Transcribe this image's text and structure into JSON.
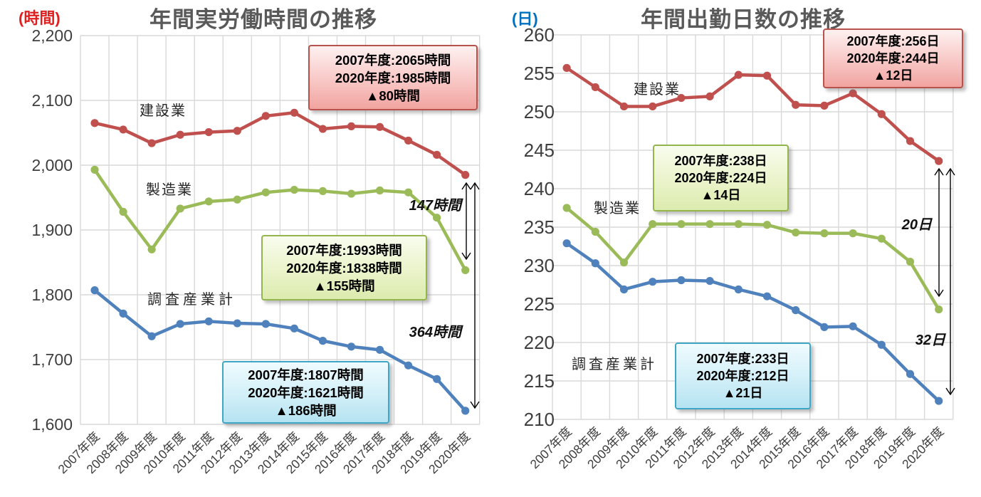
{
  "page": {
    "background": "#ffffff"
  },
  "colors": {
    "grid": "#d9d9d9",
    "tick_text": "#3f3f3f",
    "title": "#595959",
    "series_label_text": "#262626",
    "arrow": "#000000",
    "construction": "#C0504D",
    "manufacturing": "#9BBB59",
    "all_industries": "#4F81BD"
  },
  "chart_data": [
    {
      "type": "line",
      "title": "年間実労働時間の推移",
      "unit_label": "(時間)",
      "unit_color": "#e02020",
      "categories": [
        "2007年度",
        "2008年度",
        "2009年度",
        "2010年度",
        "2011年度",
        "2012年度",
        "2013年度",
        "2014年度",
        "2015年度",
        "2016年度",
        "2017年度",
        "2018年度",
        "2019年度",
        "2020年度"
      ],
      "ylim": [
        1600,
        2200
      ],
      "ytick_step": 100,
      "yticks": [
        "2,200",
        "2,100",
        "2,000",
        "1,900",
        "1,800",
        "1,700",
        "1,600"
      ],
      "grid": "on",
      "legend_position": "inline-labels",
      "series": [
        {
          "name": "建設業",
          "color": "#C0504D",
          "values": [
            2065,
            2055,
            2034,
            2047,
            2051,
            2053,
            2076,
            2081,
            2056,
            2060,
            2059,
            2038,
            2016,
            1985
          ]
        },
        {
          "name": "製造業",
          "color": "#9BBB59",
          "values": [
            1993,
            1928,
            1870,
            1933,
            1944,
            1947,
            1958,
            1962,
            1960,
            1956,
            1961,
            1958,
            1919,
            1838
          ]
        },
        {
          "name": "調査産業計",
          "color": "#4F81BD",
          "values": [
            1807,
            1771,
            1736,
            1755,
            1759,
            1756,
            1755,
            1748,
            1729,
            1720,
            1715,
            1691,
            1670,
            1621
          ]
        }
      ],
      "annotation_boxes": [
        {
          "style": "red",
          "lines": [
            "2007年度:2065時間",
            "2020年度:1985時間",
            "▲80時間"
          ]
        },
        {
          "style": "green",
          "lines": [
            "2007年度:1993時間",
            "2020年度:1838時間",
            "▲155時間"
          ]
        },
        {
          "style": "blue",
          "lines": [
            "2007年度:1807時間",
            "2020年度:1621時間",
            "▲186時間"
          ]
        }
      ],
      "gap_labels": [
        "147時間",
        "364時間"
      ]
    },
    {
      "type": "line",
      "title": "年間出勤日数の推移",
      "unit_label": "(日)",
      "unit_color": "#0070c0",
      "categories": [
        "2007年度",
        "2008年度",
        "2009年度",
        "2010年度",
        "2011年度",
        "2012年度",
        "2013年度",
        "2014年度",
        "2015年度",
        "2016年度",
        "2017年度",
        "2018年度",
        "2019年度",
        "2020年度"
      ],
      "ylim": [
        210,
        260
      ],
      "ytick_step": 5,
      "yticks": [
        "260",
        "255",
        "250",
        "245",
        "240",
        "235",
        "230",
        "225",
        "220",
        "215",
        "210"
      ],
      "grid": "on",
      "legend_position": "inline-labels",
      "series": [
        {
          "name": "建設業",
          "color": "#C0504D",
          "values": [
            255.7,
            253.2,
            250.7,
            250.7,
            251.8,
            252.0,
            254.8,
            254.7,
            250.9,
            250.8,
            252.4,
            249.7,
            246.2,
            243.6
          ]
        },
        {
          "name": "製造業",
          "color": "#9BBB59",
          "values": [
            237.5,
            234.4,
            230.4,
            235.4,
            235.4,
            235.4,
            235.4,
            235.3,
            234.3,
            234.2,
            234.2,
            233.5,
            230.5,
            224.3
          ]
        },
        {
          "name": "調査産業計",
          "color": "#4F81BD",
          "values": [
            232.9,
            230.3,
            226.9,
            227.9,
            228.1,
            228.0,
            226.9,
            226.0,
            224.2,
            222.0,
            222.1,
            219.7,
            215.9,
            212.4
          ]
        }
      ],
      "annotation_boxes": [
        {
          "style": "red",
          "lines": [
            "2007年度:256日",
            "2020年度:244日",
            "▲12日"
          ]
        },
        {
          "style": "green",
          "lines": [
            "2007年度:238日",
            "2020年度:224日",
            "▲14日"
          ]
        },
        {
          "style": "blue",
          "lines": [
            "2007年度:233日",
            "2020年度:212日",
            "▲21日"
          ]
        }
      ],
      "gap_labels": [
        "20日",
        "32日"
      ]
    }
  ]
}
